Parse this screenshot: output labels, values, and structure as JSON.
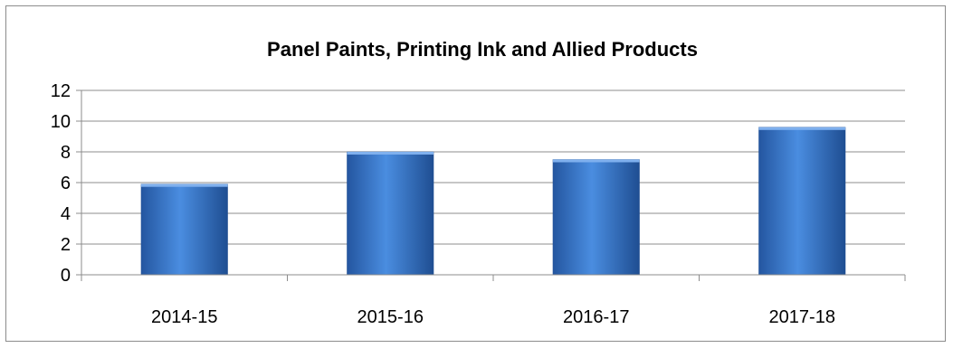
{
  "chart_data": {
    "type": "bar",
    "title": "Panel Paints, Printing Ink and Allied Products",
    "xlabel": "",
    "ylabel": "",
    "categories": [
      "2014-15",
      "2015-16",
      "2016-17",
      "2017-18"
    ],
    "values": [
      5.9,
      8.0,
      7.5,
      9.6
    ],
    "ylim": [
      0,
      12
    ],
    "yticks": [
      0,
      2,
      4,
      6,
      8,
      10,
      12
    ],
    "grid": true,
    "legend": "none",
    "bar_color": "#3a78c8"
  }
}
